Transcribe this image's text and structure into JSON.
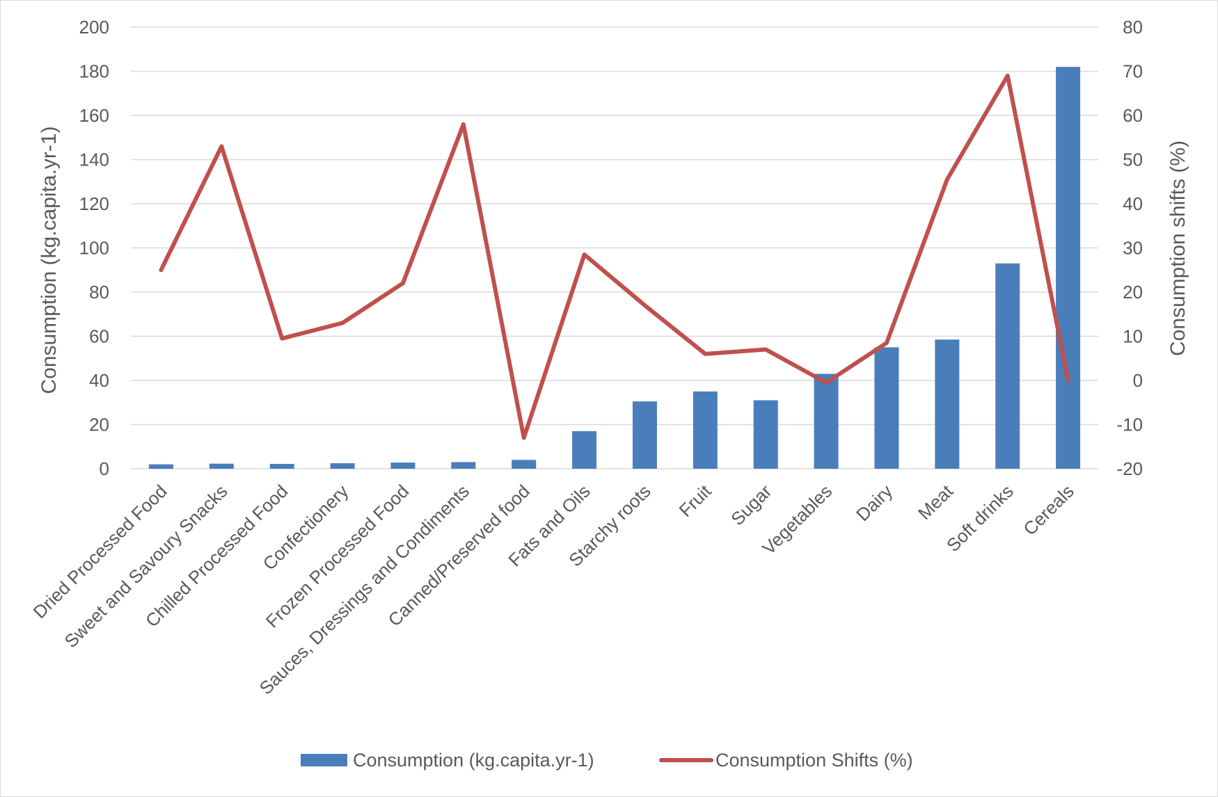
{
  "chart_data": {
    "type": "bar",
    "categories": [
      "Dried Processed Food",
      "Sweet and Savoury Snacks",
      "Chilled Processed Food",
      "Confectionery",
      "Frozen Processed Food",
      "Sauces, Dressings and Condiments",
      "Canned/Preserved food",
      "Fats and Oils",
      "Starchy roots",
      "Fruit",
      "Sugar",
      "Vegetables",
      "Dairy",
      "Meat",
      "Soft drinks",
      "Cereals"
    ],
    "series": [
      {
        "name": "Consumption (kg.capita.yr-1)",
        "type": "bar",
        "axis": "left",
        "color": "#4a7ebb",
        "values": [
          2,
          2.3,
          2.2,
          2.5,
          2.8,
          3,
          4,
          17,
          30.5,
          35,
          31,
          43,
          55,
          58.5,
          93,
          182
        ]
      },
      {
        "name": "Consumption Shifts (%)",
        "type": "line",
        "axis": "right",
        "color": "#c0504d",
        "values": [
          25,
          53,
          9.5,
          13,
          22,
          58,
          -13,
          28.5,
          17,
          6,
          7,
          -0.5,
          8.5,
          45.5,
          69,
          0
        ]
      }
    ],
    "ylabel": "Consumption (kg.capita.yr-1)",
    "y2label": "Consumption shifts (%)",
    "ylim": [
      0,
      200
    ],
    "y2lim": [
      -20,
      80
    ],
    "yticks": [
      "0",
      "20",
      "40",
      "60",
      "80",
      "100",
      "120",
      "140",
      "160",
      "180",
      "200"
    ],
    "y2ticks": [
      "-20",
      "-10",
      "0",
      "10",
      "20",
      "30",
      "40",
      "50",
      "60",
      "70",
      "80"
    ],
    "grid": true,
    "legend_position": "bottom"
  },
  "legend": {
    "bar_label": "Consumption (kg.capita.yr-1)",
    "line_label": "Consumption Shifts (%)"
  }
}
